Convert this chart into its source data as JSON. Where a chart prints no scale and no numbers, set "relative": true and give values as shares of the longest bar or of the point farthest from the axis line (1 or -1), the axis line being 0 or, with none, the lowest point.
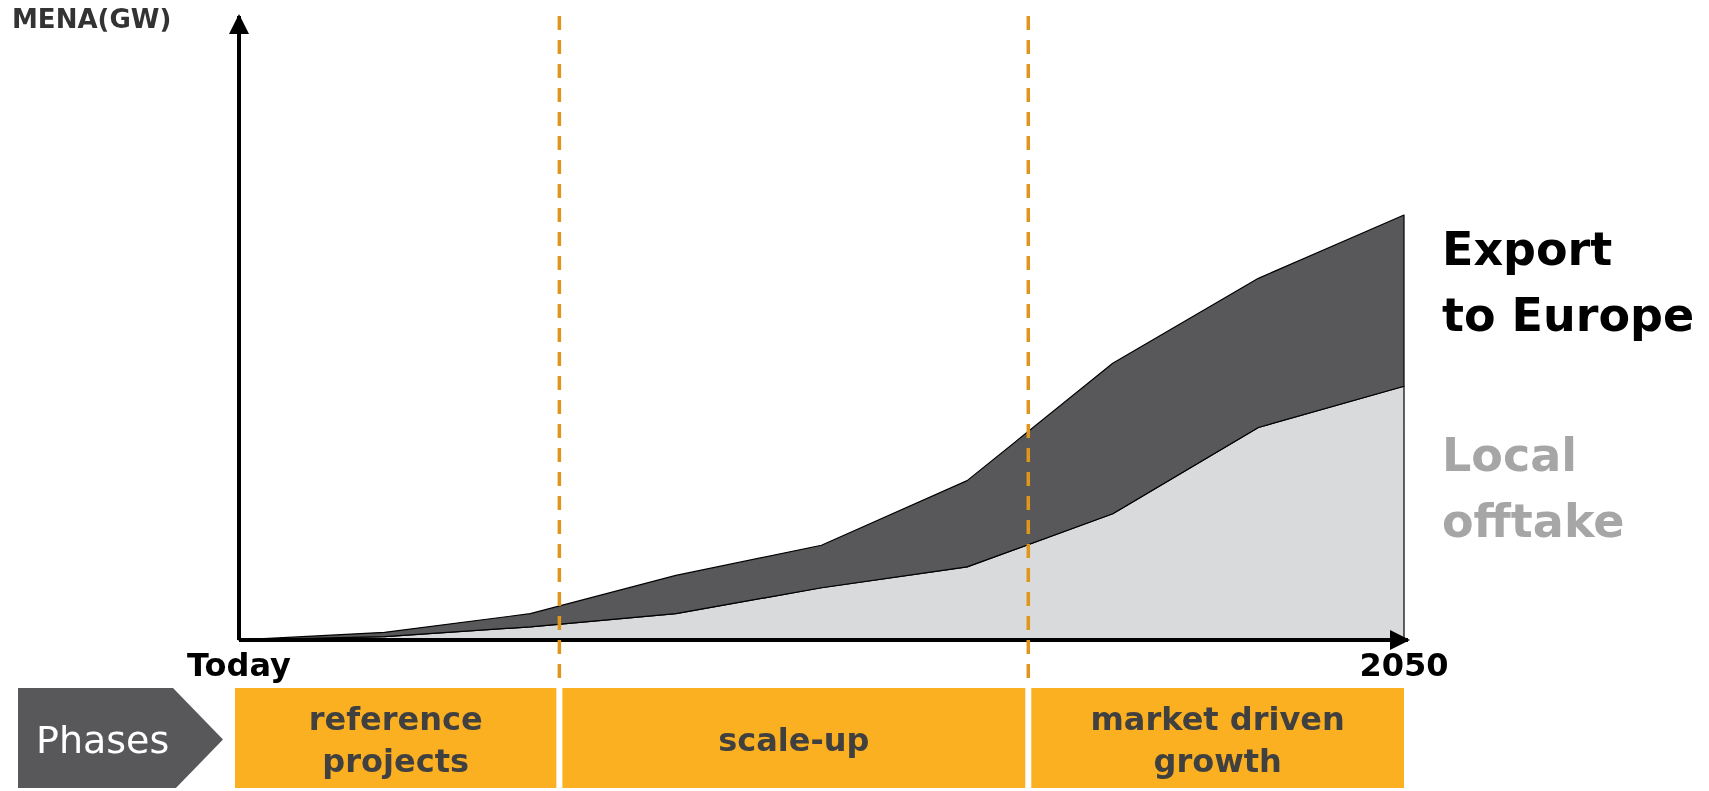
{
  "chart_data": {
    "type": "area",
    "stacked": true,
    "relative": true,
    "categories": [
      "Today",
      null,
      null,
      null,
      null,
      null,
      null,
      null,
      "2050"
    ],
    "series": [
      {
        "name": "Local offtake",
        "color": "#d9dadc",
        "values": [
          0,
          0.008,
          0.031,
          0.062,
          0.123,
          0.172,
          0.297,
          0.5,
          0.597
        ]
      },
      {
        "name": "Export to Europe",
        "color": "#58585a",
        "values": [
          0,
          0.01,
          0.031,
          0.09,
          0.1,
          0.203,
          0.354,
          0.351,
          0.403
        ]
      }
    ],
    "annotations": [
      "MENA(GW)",
      "Phases",
      "reference projects",
      "scale-up",
      "market driven growth"
    ]
  }
}
